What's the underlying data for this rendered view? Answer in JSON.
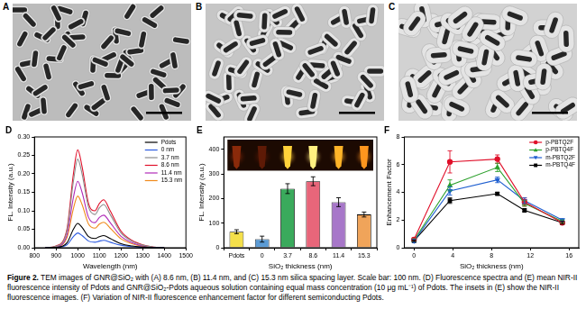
{
  "images": [
    {
      "label": "A"
    },
    {
      "label": "B"
    },
    {
      "label": "C"
    }
  ],
  "chart_data": [
    {
      "label": "D",
      "type": "line",
      "x_label": "Wavelength (nm)",
      "y_label": "FL. Intensity (a.u.)",
      "x": [
        850,
        900,
        950,
        980,
        1000,
        1020,
        1050,
        1080,
        1100,
        1120,
        1150,
        1200,
        1250,
        1300,
        1350,
        1400
      ],
      "series": [
        {
          "name": "Pdots",
          "color": "#000000",
          "values": [
            0,
            0.001,
            0.013,
            0.05,
            0.066,
            0.055,
            0.03,
            0.025,
            0.03,
            0.033,
            0.025,
            0.011,
            0.005,
            0.002,
            0,
            0
          ]
        },
        {
          "name": "0 nm",
          "color": "#2d5be0",
          "values": [
            0,
            0.001,
            0.008,
            0.03,
            0.04,
            0.033,
            0.018,
            0.015,
            0.018,
            0.02,
            0.015,
            0.007,
            0.003,
            0.001,
            0,
            0
          ]
        },
        {
          "name": "3.7 nm",
          "color": "#8c8c8c",
          "values": [
            0,
            0.004,
            0.045,
            0.18,
            0.24,
            0.2,
            0.11,
            0.09,
            0.108,
            0.117,
            0.09,
            0.04,
            0.018,
            0.007,
            0.002,
            0
          ]
        },
        {
          "name": "8.6 nm",
          "color": "#e0102a",
          "values": [
            0,
            0.005,
            0.05,
            0.2,
            0.265,
            0.22,
            0.12,
            0.1,
            0.12,
            0.13,
            0.1,
            0.045,
            0.02,
            0.008,
            0.002,
            0
          ]
        },
        {
          "name": "11.4 nm",
          "color": "#b02ab8",
          "values": [
            0,
            0.003,
            0.034,
            0.136,
            0.18,
            0.15,
            0.082,
            0.068,
            0.082,
            0.088,
            0.068,
            0.031,
            0.014,
            0.005,
            0.001,
            0
          ]
        },
        {
          "name": "15.3 nm",
          "color": "#f08a1c",
          "values": [
            0,
            0.003,
            0.027,
            0.106,
            0.14,
            0.117,
            0.064,
            0.053,
            0.064,
            0.069,
            0.053,
            0.024,
            0.011,
            0.004,
            0.001,
            0
          ]
        }
      ],
      "xlim": [
        800,
        1500
      ],
      "xticks": [
        800,
        900,
        1000,
        1100,
        1200,
        1300,
        1400,
        1500
      ],
      "ylim": [
        0,
        0.3
      ],
      "yticks": [
        {
          "value": 0,
          "label": "0.00"
        },
        {
          "value": 0.05,
          "label": "0.05"
        },
        {
          "value": 0.1,
          "label": "0.10"
        },
        {
          "value": 0.15,
          "label": "0.15"
        },
        {
          "value": 0.2,
          "label": "0.20"
        },
        {
          "value": 0.25,
          "label": "0.25"
        },
        {
          "value": 0.3,
          "label": "0.30"
        }
      ],
      "grid": false,
      "legend": "upper right",
      "marker": "none",
      "line_style": "solid"
    },
    {
      "label": "E",
      "type": "bar",
      "x_label": "SiO₂ thickness (nm)",
      "y_label": "FL. Intensity (a.u.)",
      "categories": [
        "Pdots",
        "0",
        "3.7",
        "8.6",
        "11.4",
        "15.3"
      ],
      "values": [
        65,
        35,
        240,
        270,
        185,
        135
      ],
      "errors": [
        8,
        12,
        20,
        18,
        18,
        10
      ],
      "colors": [
        "#f5e04a",
        "#5b9bd5",
        "#3aaa5c",
        "#e8667a",
        "#a777c9",
        "#f0a45a"
      ],
      "ylim": [
        0,
        450
      ],
      "yticks": [
        0,
        100,
        200,
        300,
        400
      ],
      "grid": false
    },
    {
      "label": "F",
      "type": "line",
      "x_label": "SiO₂ thickness (nm)",
      "y_label": "Enhancement Factor",
      "x": [
        0,
        3.7,
        8.6,
        11.4,
        15.3
      ],
      "series": [
        {
          "name": "p-PBTQ2F",
          "color": "#e0102a",
          "marker": "circle",
          "line_style": "solid",
          "values": [
            0.6,
            6.2,
            6.4,
            3.3,
            1.8
          ],
          "errors": [
            0.1,
            0.8,
            0.3,
            0.3,
            0.1
          ]
        },
        {
          "name": "p-PBTQ4F",
          "color": "#2ca02c",
          "marker": "triangle",
          "line_style": "solid",
          "values": [
            0.55,
            4.5,
            5.8,
            3.2,
            1.9
          ],
          "errors": [
            0.1,
            0.4,
            0.3,
            0.2,
            0.1
          ]
        },
        {
          "name": "m-PBTQ2F",
          "color": "#1f5fd0",
          "marker": "triangle_down",
          "line_style": "solid",
          "values": [
            0.5,
            4.1,
            4.9,
            3.4,
            2.0
          ],
          "errors": [
            0.1,
            0.3,
            0.2,
            0.2,
            0.1
          ]
        },
        {
          "name": "m-PBTQ4F",
          "color": "#000000",
          "marker": "square",
          "line_style": "solid",
          "values": [
            0.5,
            3.4,
            3.9,
            2.7,
            1.8
          ],
          "errors": [
            0.05,
            0.2,
            0.1,
            0.1,
            0.1
          ]
        }
      ],
      "xlim": [
        -1,
        17
      ],
      "xticks": [
        0,
        4,
        8,
        12,
        16
      ],
      "ylim": [
        0,
        8
      ],
      "yticks": [
        0,
        2,
        4,
        6,
        8
      ],
      "grid": false,
      "legend": "upper right"
    }
  ],
  "caption": {
    "label": "Figure 2.",
    "text": "TEM images of GNR@SiO₂ with (A) 8.6 nm, (B) 11.4 nm, and (C) 15.3 nm silica spacing layer. Scale bar: 100 nm. (D) Fluorescence spectra and (E) mean NIR-II fluorescence intensity of Pdots and GNR@SiO₂-Pdots aqueous solution containing equal mass concentration (10 μg mL⁻¹) of Pdots. The insets in (E) show the NIR-II fluorescence images. (F) Variation of NIR-II fluorescence enhancement factor for different semiconducting Pdots."
  }
}
